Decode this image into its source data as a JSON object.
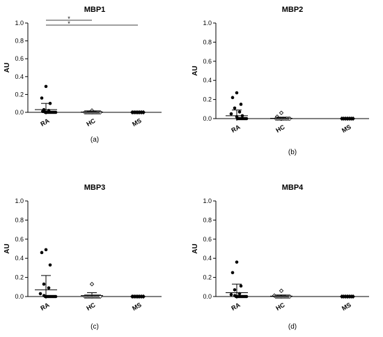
{
  "chart_data": [
    {
      "type": "scatter",
      "title": "MBP1",
      "ylabel": "AU",
      "panel_label": "(a)",
      "categories": [
        "RA",
        "HC",
        "MS"
      ],
      "ylim": [
        0,
        1.0
      ],
      "yticks": [
        "0.0",
        "0.2",
        "0.4",
        "0.6",
        "0.8",
        "1.0"
      ],
      "ytick_values": [
        0,
        0.2,
        0.4,
        0.6,
        0.8,
        1.0
      ],
      "significance": [
        {
          "from": "RA",
          "to": "HC",
          "label": "*"
        },
        {
          "from": "RA",
          "to": "MS",
          "label": "*"
        }
      ],
      "series": [
        {
          "name": "RA",
          "marker": "filled-circle",
          "mean": 0.03,
          "error": [
            0.0,
            0.1
          ],
          "values": [
            0.29,
            0.16,
            0.1,
            0.03,
            0.02,
            0.01,
            0.01,
            0.0,
            0.0,
            0.0,
            0.0,
            0.0,
            0.0,
            0.0,
            0.0,
            0.0
          ]
        },
        {
          "name": "HC",
          "marker": "open-diamond",
          "mean": 0.004,
          "error": [
            0.0,
            0.008
          ],
          "values": [
            0.02,
            0.0,
            0.0,
            0.0,
            0.0,
            0.0,
            0.0,
            0.0,
            0.0,
            0.0,
            0.0,
            0.0,
            0.0
          ]
        },
        {
          "name": "MS",
          "marker": "filled-diamond",
          "mean": 0.0,
          "error": [
            0.0,
            0.0
          ],
          "values": [
            0.0,
            0.0,
            0.0,
            0.0,
            0.0,
            0.0,
            0.0
          ]
        }
      ]
    },
    {
      "type": "scatter",
      "title": "MBP2",
      "ylabel": "AU",
      "panel_label": "(b)",
      "categories": [
        "RA",
        "HC",
        "MS"
      ],
      "ylim": [
        0,
        1.0
      ],
      "yticks": [
        "0.0",
        "0.2",
        "0.4",
        "0.6",
        "0.8",
        "1.0"
      ],
      "ytick_values": [
        0,
        0.2,
        0.4,
        0.6,
        0.8,
        1.0
      ],
      "significance": [],
      "series": [
        {
          "name": "RA",
          "marker": "filled-circle",
          "mean": 0.03,
          "error": [
            0.0,
            0.09
          ],
          "values": [
            0.27,
            0.22,
            0.15,
            0.11,
            0.07,
            0.05,
            0.03,
            0.02,
            0.0,
            0.0,
            0.0,
            0.0,
            0.0,
            0.0,
            0.0,
            0.0
          ]
        },
        {
          "name": "HC",
          "marker": "open-diamond",
          "mean": 0.004,
          "error": [
            0.0,
            0.01
          ],
          "values": [
            0.06,
            0.02,
            0.0,
            0.0,
            0.0,
            0.0,
            0.0,
            0.0,
            0.0,
            0.0,
            0.0,
            0.0
          ]
        },
        {
          "name": "MS",
          "marker": "filled-diamond",
          "mean": 0.0,
          "error": [
            0.0,
            0.0
          ],
          "values": [
            0.0,
            0.0,
            0.0,
            0.0,
            0.0,
            0.0,
            0.0
          ]
        }
      ]
    },
    {
      "type": "scatter",
      "title": "MBP3",
      "ylabel": "AU",
      "panel_label": "(c)",
      "categories": [
        "RA",
        "HC",
        "MS"
      ],
      "ylim": [
        0,
        1.0
      ],
      "yticks": [
        "0.0",
        "0.2",
        "0.4",
        "0.6",
        "0.8",
        "1.0"
      ],
      "ytick_values": [
        0,
        0.2,
        0.4,
        0.6,
        0.8,
        1.0
      ],
      "significance": [],
      "series": [
        {
          "name": "RA",
          "marker": "filled-circle",
          "mean": 0.07,
          "error": [
            0.0,
            0.22
          ],
          "values": [
            0.49,
            0.46,
            0.33,
            0.13,
            0.09,
            0.03,
            0.01,
            0.0,
            0.0,
            0.0,
            0.0,
            0.0,
            0.0,
            0.0,
            0.0,
            0.0
          ]
        },
        {
          "name": "HC",
          "marker": "open-diamond",
          "mean": 0.01,
          "error": [
            0.0,
            0.04
          ],
          "values": [
            0.13,
            0.0,
            0.0,
            0.0,
            0.0,
            0.0,
            0.0,
            0.0,
            0.0,
            0.0,
            0.0,
            0.0,
            0.0
          ]
        },
        {
          "name": "MS",
          "marker": "filled-diamond",
          "mean": 0.0,
          "error": [
            0.0,
            0.0
          ],
          "values": [
            0.0,
            0.0,
            0.0,
            0.0,
            0.0,
            0.0,
            0.0
          ]
        }
      ]
    },
    {
      "type": "scatter",
      "title": "MBP4",
      "ylabel": "AU",
      "panel_label": "(d)",
      "categories": [
        "RA",
        "HC",
        "MS"
      ],
      "ylim": [
        0,
        1.0
      ],
      "yticks": [
        "0.0",
        "0.2",
        "0.4",
        "0.6",
        "0.8",
        "1.0"
      ],
      "ytick_values": [
        0,
        0.2,
        0.4,
        0.6,
        0.8,
        1.0
      ],
      "significance": [],
      "series": [
        {
          "name": "RA",
          "marker": "filled-circle",
          "mean": 0.04,
          "error": [
            0.0,
            0.13
          ],
          "values": [
            0.36,
            0.25,
            0.11,
            0.07,
            0.03,
            0.02,
            0.01,
            0.0,
            0.0,
            0.0,
            0.0,
            0.0,
            0.0,
            0.0,
            0.0,
            0.0
          ]
        },
        {
          "name": "HC",
          "marker": "open-diamond",
          "mean": 0.005,
          "error": [
            0.0,
            0.015
          ],
          "values": [
            0.06,
            0.01,
            0.0,
            0.0,
            0.0,
            0.0,
            0.0,
            0.0,
            0.0,
            0.0,
            0.0,
            0.0,
            0.0
          ]
        },
        {
          "name": "MS",
          "marker": "filled-diamond",
          "mean": 0.0,
          "error": [
            0.0,
            0.0
          ],
          "values": [
            0.0,
            0.0,
            0.0,
            0.0,
            0.0,
            0.0,
            0.0
          ]
        }
      ]
    }
  ]
}
